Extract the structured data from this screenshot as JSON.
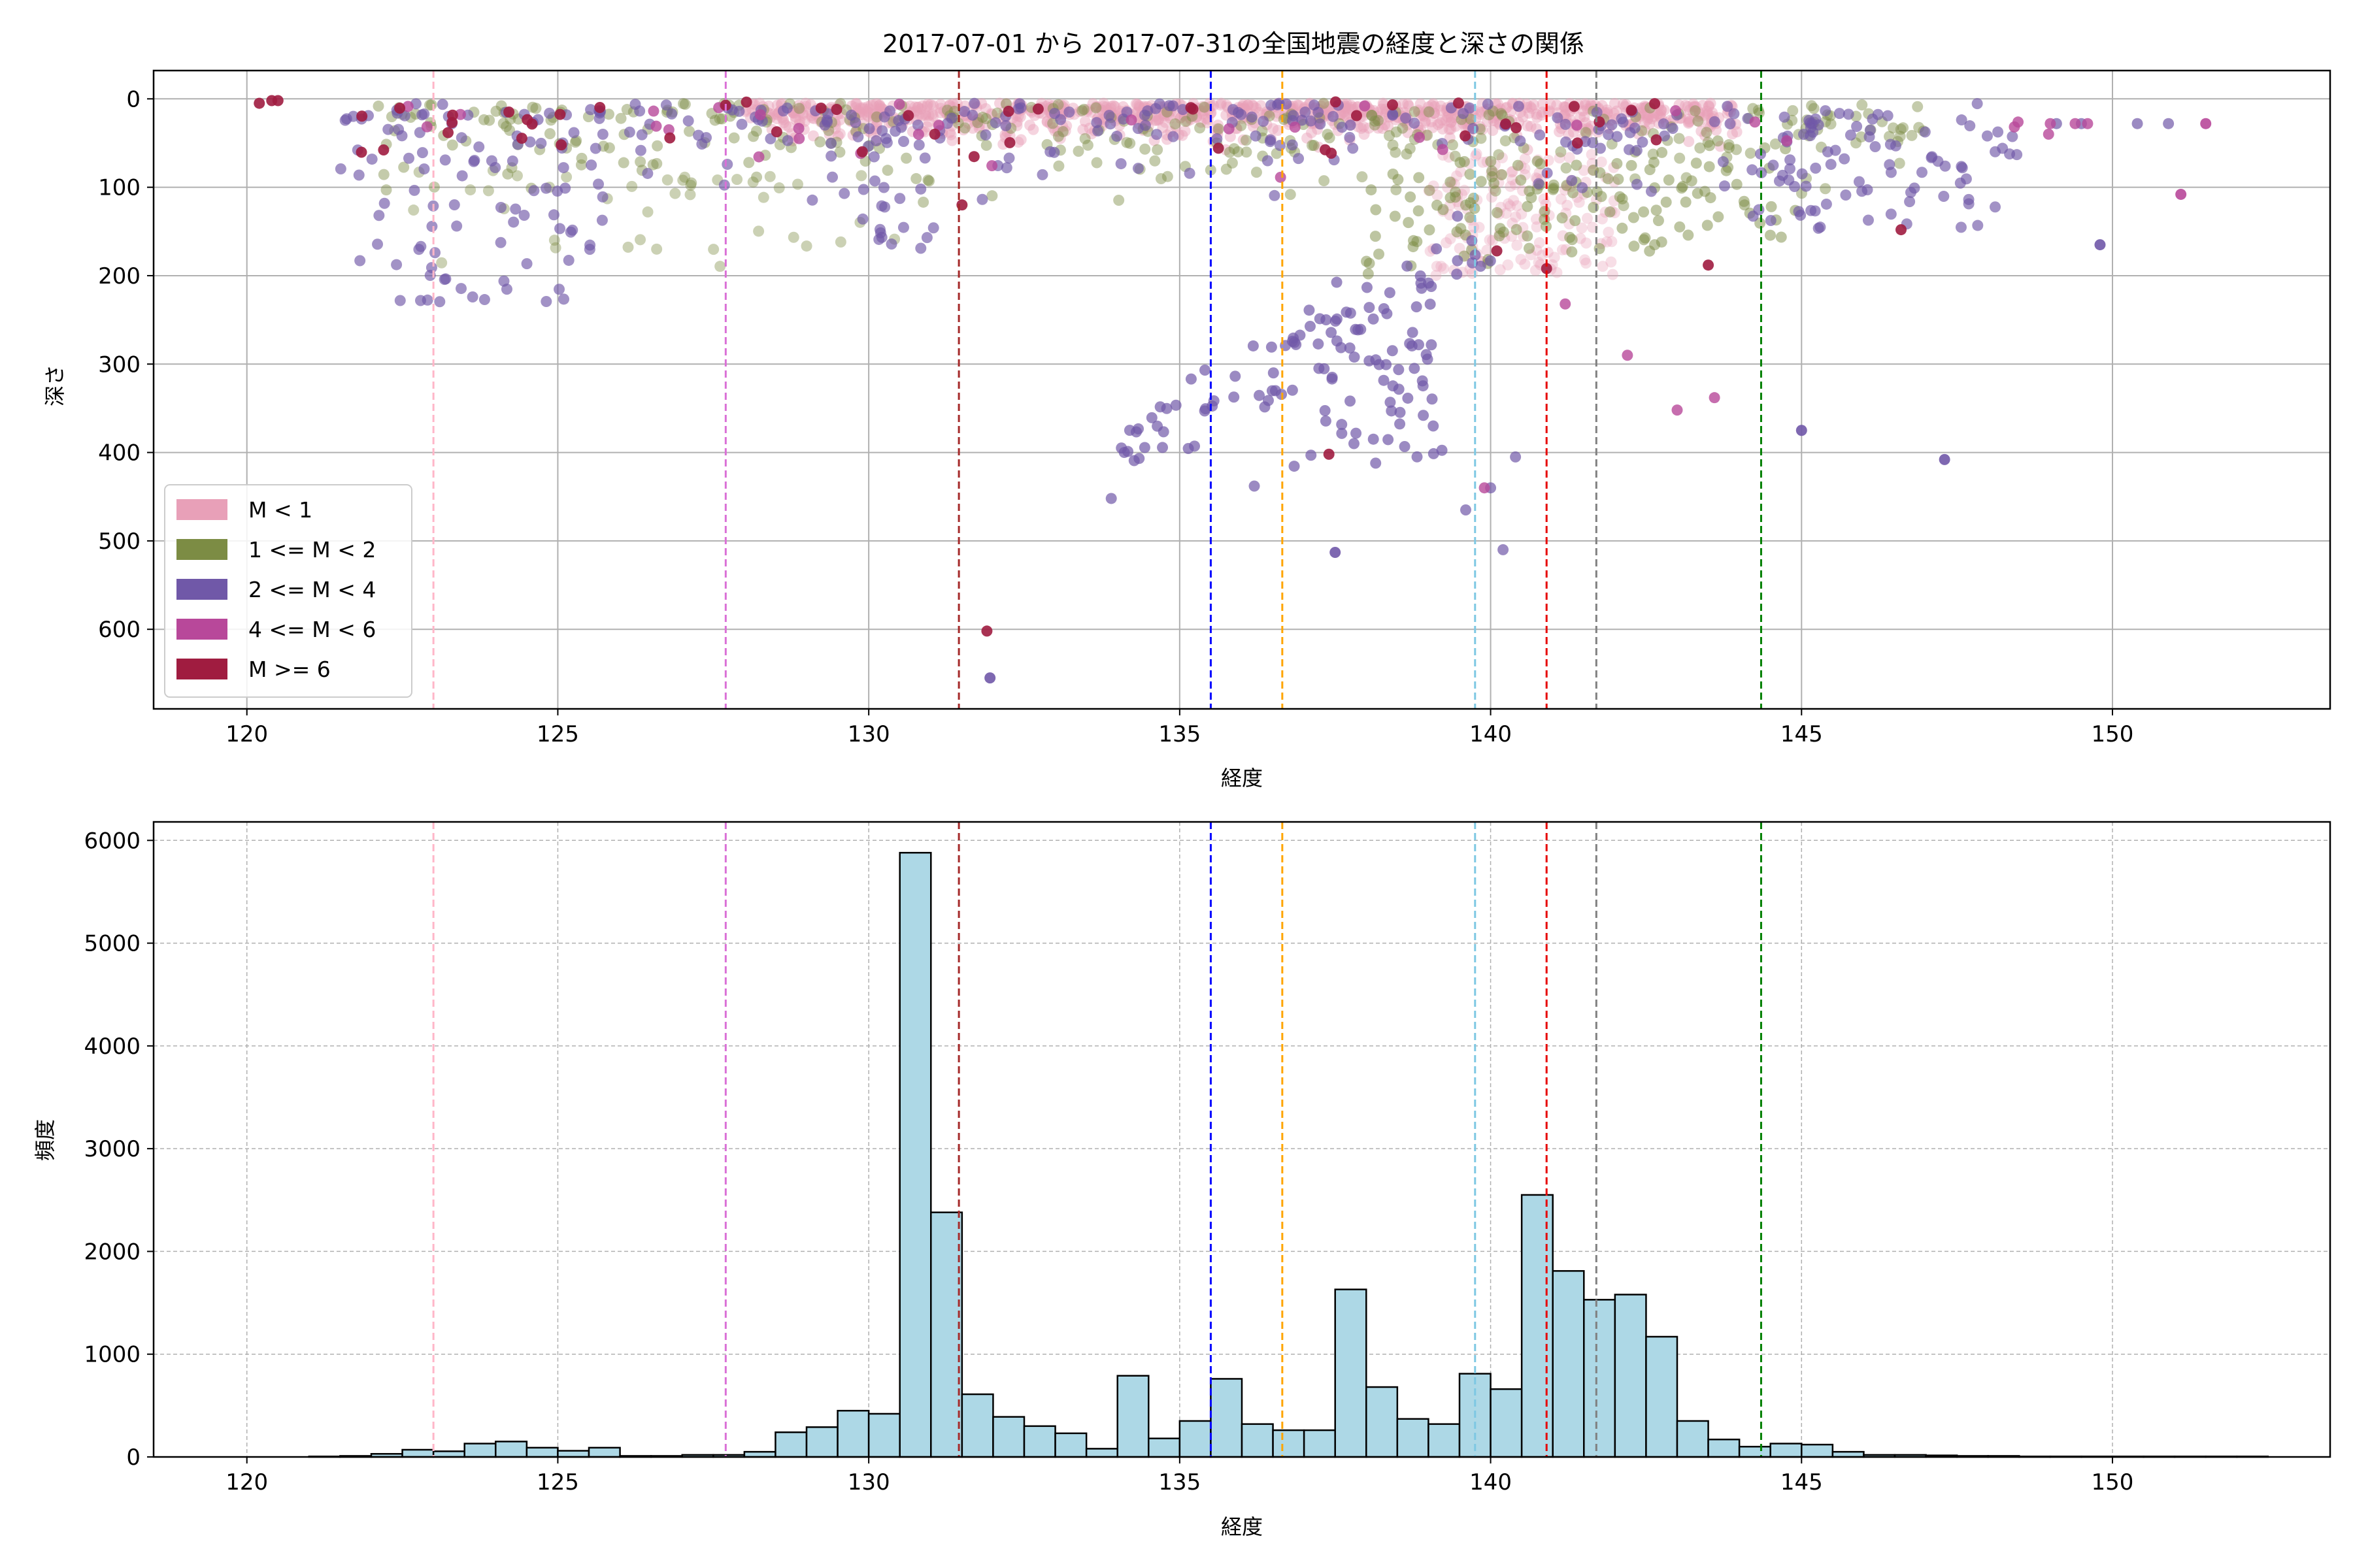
{
  "chart_data": [
    {
      "type": "scatter",
      "title": "2017-07-01 から 2017-07-31の全国地震の経度と深さの関係",
      "xlabel": "経度",
      "ylabel": "深さ",
      "xlim": [
        118.5,
        153.5
      ],
      "ylim": [
        690,
        -32
      ],
      "y_inverted": true,
      "grid": true,
      "legend_position": "lower-left",
      "xticks": [
        120,
        125,
        130,
        135,
        140,
        145,
        150
      ],
      "yticks": [
        0,
        100,
        200,
        300,
        400,
        500,
        600
      ],
      "series": [
        {
          "name": "M < 1",
          "color": "#e8a0b8"
        },
        {
          "name": "1 <= M < 2",
          "color": "#7c8c44"
        },
        {
          "name": "2 <= M < 4",
          "color": "#7058a8"
        },
        {
          "name": "4 <= M < 6",
          "color": "#b8489a"
        },
        {
          "name": "M >= 6",
          "color": "#a01c40"
        }
      ],
      "vlines": [
        {
          "x": 123.0,
          "color": "#ffb6c8"
        },
        {
          "x": 127.7,
          "color": "#da70d6"
        },
        {
          "x": 131.45,
          "color": "#a52a2a"
        },
        {
          "x": 135.5,
          "color": "#0000ff"
        },
        {
          "x": 136.65,
          "color": "#ffa500"
        },
        {
          "x": 139.75,
          "color": "#7ec8e3"
        },
        {
          "x": 140.9,
          "color": "#e60000"
        },
        {
          "x": 141.7,
          "color": "#808080"
        },
        {
          "x": 144.35,
          "color": "#008000"
        }
      ],
      "notable_points": [
        {
          "series": "M >= 6",
          "x": 131.9,
          "y": 602
        },
        {
          "series": "2 <= M < 4",
          "x": 131.95,
          "y": 655
        },
        {
          "series": "2 <= M < 4",
          "x": 137.5,
          "y": 513
        },
        {
          "series": "2 <= M < 4",
          "x": 145.0,
          "y": 375
        },
        {
          "series": "2 <= M < 4",
          "x": 147.3,
          "y": 408
        },
        {
          "series": "4 <= M < 6",
          "x": 151.5,
          "y": 28
        },
        {
          "series": "4 <= M < 6",
          "x": 151.1,
          "y": 108
        },
        {
          "series": "2 <= M < 4",
          "x": 149.8,
          "y": 165
        }
      ]
    },
    {
      "type": "bar",
      "xlabel": "経度",
      "ylabel": "頻度",
      "xlim": [
        118.5,
        153.5
      ],
      "ylim": [
        0,
        6180
      ],
      "grid": true,
      "xticks": [
        120,
        125,
        130,
        135,
        140,
        145,
        150
      ],
      "yticks": [
        0,
        1000,
        2000,
        3000,
        4000,
        5000,
        6000
      ],
      "bar_color": "#add8e6",
      "edge_color": "#000000",
      "bin_start": 120.0,
      "bin_width": 0.5,
      "values": [
        0,
        0,
        5,
        10,
        30,
        70,
        55,
        130,
        150,
        90,
        60,
        90,
        10,
        10,
        20,
        20,
        50,
        240,
        290,
        450,
        420,
        5880,
        2380,
        610,
        390,
        300,
        230,
        80,
        790,
        180,
        350,
        760,
        320,
        260,
        260,
        1630,
        680,
        370,
        320,
        810,
        660,
        2550,
        1810,
        1530,
        1580,
        1170,
        350,
        170,
        100,
        130,
        120,
        50,
        20,
        20,
        15,
        10,
        10,
        5,
        5,
        5,
        5,
        5,
        5,
        5,
        5
      ],
      "vlines": [
        {
          "x": 123.0,
          "color": "#ffb6c8"
        },
        {
          "x": 127.7,
          "color": "#da70d6"
        },
        {
          "x": 131.45,
          "color": "#a52a2a"
        },
        {
          "x": 135.5,
          "color": "#0000ff"
        },
        {
          "x": 136.65,
          "color": "#ffa500"
        },
        {
          "x": 139.75,
          "color": "#7ec8e3"
        },
        {
          "x": 140.9,
          "color": "#e60000"
        },
        {
          "x": 141.7,
          "color": "#808080"
        },
        {
          "x": 144.35,
          "color": "#008000"
        }
      ]
    }
  ]
}
